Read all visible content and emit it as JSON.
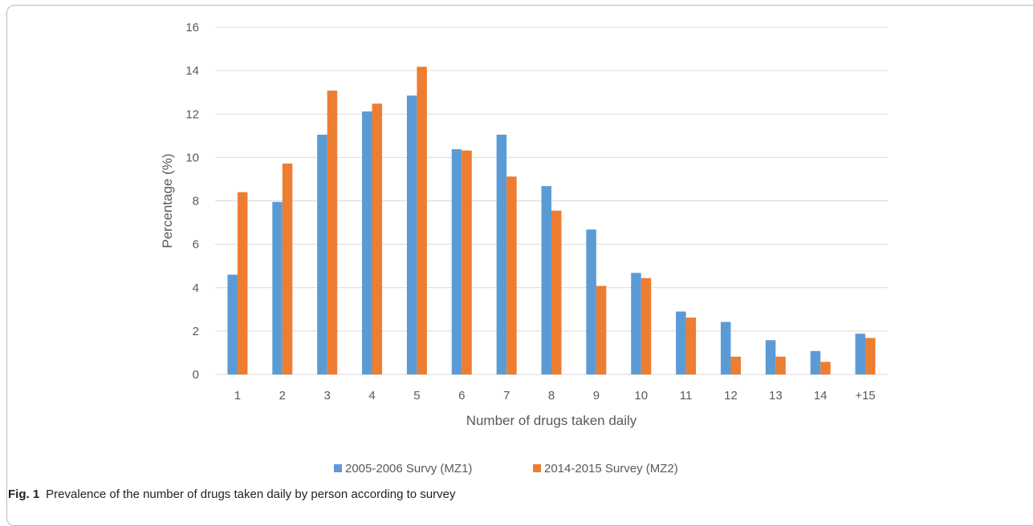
{
  "chart_data": {
    "type": "bar",
    "categories": [
      "1",
      "2",
      "3",
      "4",
      "5",
      "6",
      "7",
      "8",
      "9",
      "10",
      "11",
      "12",
      "13",
      "14",
      "+15"
    ],
    "series": [
      {
        "name": "2005-2006 Survy (MZ1)",
        "color": "#5b9bd5",
        "values": [
          4.6,
          7.95,
          11.05,
          12.12,
          12.85,
          10.38,
          11.05,
          8.68,
          6.68,
          4.68,
          2.9,
          2.42,
          1.58,
          1.08,
          1.88
        ]
      },
      {
        "name": "2014-2015 Survey (MZ2)",
        "color": "#ed7d31",
        "values": [
          8.4,
          9.72,
          13.08,
          12.48,
          14.18,
          10.32,
          9.12,
          7.55,
          4.08,
          4.44,
          2.62,
          0.82,
          0.82,
          0.58,
          1.68
        ]
      }
    ],
    "xlabel": "Number of drugs taken daily",
    "ylabel": "Percentage (%)",
    "ylim": [
      0,
      16
    ],
    "yticks": [
      0,
      2,
      4,
      6,
      8,
      10,
      12,
      14,
      16
    ],
    "grid": true,
    "legend_position": "bottom"
  },
  "caption": {
    "label": "Fig. 1",
    "text": "Prevalence of the number of drugs taken daily by person according to survey"
  }
}
